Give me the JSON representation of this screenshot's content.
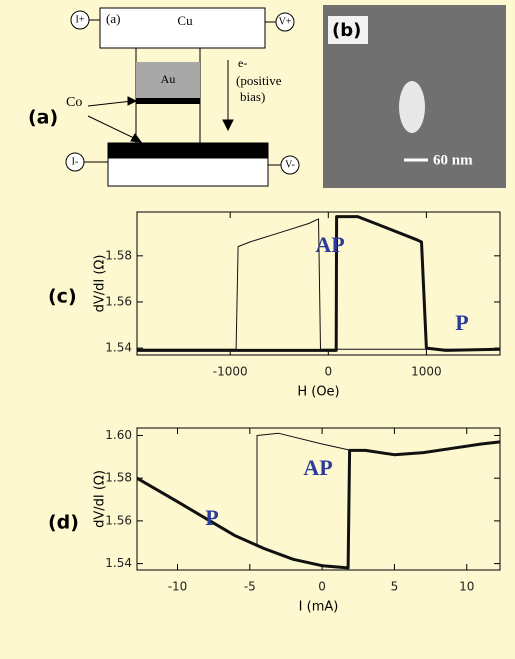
{
  "schematic": {
    "panel_label": "(a)",
    "inner_label": "(a)",
    "top_left": "I+",
    "top_right": "V+",
    "bottom_left": "I-",
    "bottom_right": "V-",
    "cu": "Cu",
    "au": "Au",
    "electron": "e-",
    "bias": [
      "(positive",
      "bias)"
    ],
    "co": "Co"
  },
  "image": {
    "panel_label": "(b)",
    "scale": "60 nm"
  },
  "chart_data": [
    {
      "type": "line",
      "panel_label": "(c)",
      "x_label": "H (Oe)",
      "y_label": "dV/dI (Ω)",
      "xlim": [
        -1950,
        1750
      ],
      "ylim": [
        1.537,
        1.599
      ],
      "xticks": [
        -1000,
        0,
        1000
      ],
      "yticks": [
        1.54,
        1.56,
        1.58
      ],
      "annotations": [
        "AP",
        "P"
      ],
      "annotation_color": "#2b3a9c",
      "series": [
        {
          "color": "#111111",
          "width": 3,
          "x": [
            -1950,
            -1000,
            0,
            80,
            85,
            300,
            600,
            900,
            950,
            1000,
            1200,
            1750
          ],
          "values": [
            1.539,
            1.539,
            1.539,
            1.539,
            1.597,
            1.597,
            1.592,
            1.587,
            1.586,
            1.54,
            1.539,
            1.5395
          ]
        },
        {
          "color": "#111111",
          "width": 1,
          "x": [
            -1950,
            -940,
            -920,
            -800,
            -500,
            -200,
            -100,
            -80,
            500,
            1750
          ],
          "values": [
            1.5395,
            1.5395,
            1.584,
            1.586,
            1.59,
            1.594,
            1.596,
            1.5395,
            1.5395,
            1.5395
          ]
        }
      ]
    },
    {
      "type": "line",
      "panel_label": "(d)",
      "x_label": "I (mA)",
      "y_label": "dV/dI (Ω)",
      "xlim": [
        -12.8,
        12.3
      ],
      "ylim": [
        1.537,
        1.6035
      ],
      "xticks": [
        -10,
        -5,
        0,
        5,
        10
      ],
      "yticks": [
        1.54,
        1.56,
        1.58,
        {
          "value": 1.6,
          "label": "1.60"
        }
      ],
      "annotations": [
        "AP",
        "P"
      ],
      "annotation_color": "#2b3a9c",
      "series": [
        {
          "color": "#111111",
          "width": 3,
          "x": [
            -12.8,
            -10,
            -8,
            -6,
            -4,
            -2,
            0,
            1.8,
            1.9,
            3,
            5,
            7,
            9,
            11,
            12.3
          ],
          "values": [
            1.58,
            1.569,
            1.561,
            1.553,
            1.547,
            1.542,
            1.539,
            1.538,
            1.593,
            1.593,
            1.591,
            1.592,
            1.594,
            1.596,
            1.597
          ]
        },
        {
          "color": "#111111",
          "width": 1,
          "x": [
            -4.5,
            -4.5,
            -3,
            0,
            2
          ],
          "values": [
            1.548,
            1.6,
            1.601,
            1.596,
            1.593
          ]
        }
      ]
    }
  ]
}
